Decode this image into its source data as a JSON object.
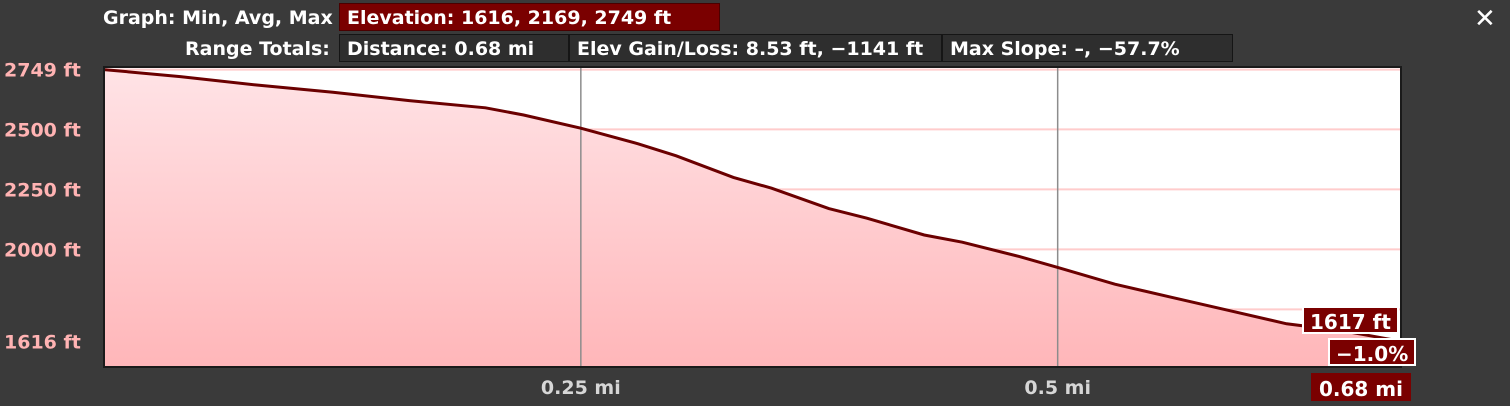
{
  "header": {
    "graph_label": "Graph: Min, Avg, Max",
    "elevation_value": "Elevation: 1616, 2169, 2749 ft",
    "range_label": "Range Totals:",
    "distance_value": "Distance: 0.68 mi",
    "gain_loss_value": "Elev Gain/Loss: 8.53 ft, −1141 ft",
    "slope_value": "Max Slope: –, −57.7%"
  },
  "close_icon": "close-icon",
  "cursor": {
    "elevation_label": "1617 ft",
    "slope_label": "−1.0%",
    "distance_label": "0.68 mi"
  },
  "colors": {
    "line": "#6b0000",
    "fill_top": "#ffe3e6",
    "fill_bottom": "#ffb6b9",
    "grid_h": "#ffcccc",
    "grid_v": "#8c8c8c",
    "accent": "#7a0000"
  },
  "chart_data": {
    "type": "area",
    "title": "",
    "xlabel": "",
    "ylabel": "",
    "x_unit": "mi",
    "y_unit": "ft",
    "xlim": [
      0,
      0.68
    ],
    "ylim": [
      1510,
      2760
    ],
    "y_ticks": [
      {
        "value": 2749,
        "label": "2749 ft"
      },
      {
        "value": 2500,
        "label": "2500 ft"
      },
      {
        "value": 2250,
        "label": "2250 ft"
      },
      {
        "value": 2000,
        "label": "2000 ft"
      },
      {
        "value": 1616,
        "label": "1616 ft"
      }
    ],
    "y_grid_extra": [
      1750
    ],
    "x_ticks": [
      {
        "value": 0.25,
        "label": "0.25 mi"
      },
      {
        "value": 0.5,
        "label": "0.5 mi"
      }
    ],
    "series": [
      {
        "x": [
          0,
          0.04,
          0.08,
          0.12,
          0.16,
          0.2,
          0.22,
          0.25,
          0.28,
          0.3,
          0.33,
          0.35,
          0.38,
          0.4,
          0.43,
          0.45,
          0.48,
          0.5,
          0.53,
          0.56,
          0.59,
          0.62,
          0.65,
          0.68
        ],
        "y": [
          2749,
          2720,
          2685,
          2655,
          2620,
          2590,
          2560,
          2505,
          2440,
          2390,
          2300,
          2255,
          2170,
          2130,
          2060,
          2030,
          1970,
          1925,
          1855,
          1800,
          1745,
          1690,
          1660,
          1617
        ]
      }
    ],
    "grid": true,
    "legend": "none",
    "cursor_x": 0.68,
    "cursor_y": 1617
  }
}
